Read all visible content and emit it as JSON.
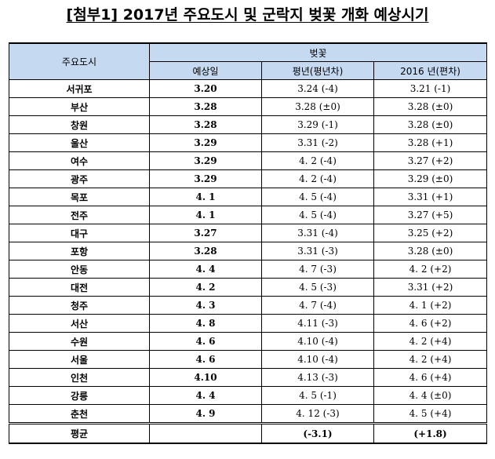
{
  "title": "[첨부1] 2017년 주요도시 및 군락지 벚꽃 개화 예상시기",
  "header": {
    "city_col": "주요도시",
    "group": "벚꽃",
    "expected": "예상일",
    "normal": "평년(평년차)",
    "prev_year": "2016 년(편차)"
  },
  "rows": [
    {
      "city": "서귀포",
      "expected": "3.20",
      "normal": "3.24 (-4)",
      "prev": "3.21 (-1)"
    },
    {
      "city": "부산",
      "expected": "3.28",
      "normal": "3.28 (±0)",
      "prev": "3.28 (±0)"
    },
    {
      "city": "창원",
      "expected": "3.28",
      "normal": "3.29 (-1)",
      "prev": "3.28 (±0)"
    },
    {
      "city": "울산",
      "expected": "3.29",
      "normal": "3.31 (-2)",
      "prev": "3.28 (+1)"
    },
    {
      "city": "여수",
      "expected": "3.29",
      "normal": "4. 2 (-4)",
      "prev": "3.27 (+2)"
    },
    {
      "city": "광주",
      "expected": "3.29",
      "normal": "4. 2 (-4)",
      "prev": "3.29 (±0)"
    },
    {
      "city": "목포",
      "expected": "4. 1",
      "normal": "4. 5 (-4)",
      "prev": "3.31 (+1)"
    },
    {
      "city": "전주",
      "expected": "4. 1",
      "normal": "4. 5 (-4)",
      "prev": "3.27 (+5)"
    },
    {
      "city": "대구",
      "expected": "3.27",
      "normal": "3.31 (-4)",
      "prev": "3.25 (+2)"
    },
    {
      "city": "포항",
      "expected": "3.28",
      "normal": "3.31 (-3)",
      "prev": "3.28 (±0)"
    },
    {
      "city": "안동",
      "expected": "4. 4",
      "normal": "4. 7 (-3)",
      "prev": "4. 2 (+2)"
    },
    {
      "city": "대전",
      "expected": "4. 2",
      "normal": "4. 5 (-3)",
      "prev": "3.31 (+2)"
    },
    {
      "city": "청주",
      "expected": "4. 3",
      "normal": "4. 7 (-4)",
      "prev": "4. 1 (+2)"
    },
    {
      "city": "서산",
      "expected": "4. 8",
      "normal": "4.11 (-3)",
      "prev": "4. 6 (+2)"
    },
    {
      "city": "수원",
      "expected": "4. 6",
      "normal": "4.10 (-4)",
      "prev": "4. 2 (+4)"
    },
    {
      "city": "서울",
      "expected": "4. 6",
      "normal": "4.10 (-4)",
      "prev": "4. 2 (+4)"
    },
    {
      "city": "인천",
      "expected": "4.10",
      "normal": "4.13 (-3)",
      "prev": "4. 6 (+4)"
    },
    {
      "city": "강릉",
      "expected": "4. 4",
      "normal": "4. 5 (-1)",
      "prev": "4. 4 (±0)"
    },
    {
      "city": "춘천",
      "expected": "4. 9",
      "normal": "4. 12 (-3)",
      "prev": "4. 5 (+4)"
    }
  ],
  "average": {
    "label": "평균",
    "expected": "",
    "normal": "(-3.1)",
    "prev": "(+1.8)"
  },
  "colors": {
    "header_bg": "#c5d9f1",
    "border": "#000000"
  }
}
